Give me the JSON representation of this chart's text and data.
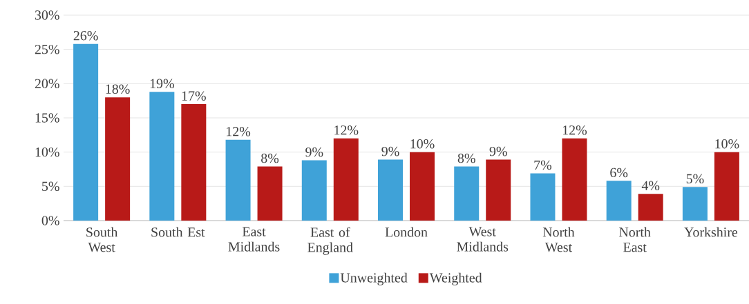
{
  "chart_data": {
    "type": "bar",
    "categories": [
      "South West",
      "South Est",
      "East Midlands",
      "East of England",
      "London",
      "West Midlands",
      "North West",
      "North East",
      "Yorkshire"
    ],
    "series": [
      {
        "name": "Unweighted",
        "color": "#3fa2d8",
        "values": [
          25.8,
          18.8,
          11.8,
          8.8,
          8.9,
          7.9,
          6.9,
          5.8,
          4.9
        ],
        "value_labels": [
          "26%",
          "19%",
          "12%",
          "9%",
          "9%",
          "8%",
          "7%",
          "6%",
          "5%"
        ]
      },
      {
        "name": "Weighted",
        "color": "#b81a18",
        "values": [
          18.0,
          17.0,
          7.9,
          12.0,
          10.0,
          8.9,
          12.0,
          3.9,
          10.0
        ],
        "value_labels": [
          "18%",
          "17%",
          "8%",
          "12%",
          "10%",
          "9%",
          "12%",
          "4%",
          "10%"
        ]
      }
    ],
    "ylim": [
      0,
      30
    ],
    "yticks": [
      {
        "value": 0,
        "label": "0%"
      },
      {
        "value": 5,
        "label": "5%"
      },
      {
        "value": 10,
        "label": "10%"
      },
      {
        "value": 15,
        "label": "15%"
      },
      {
        "value": 20,
        "label": "20%"
      },
      {
        "value": 25,
        "label": "25%"
      },
      {
        "value": 30,
        "label": "30%"
      }
    ],
    "grid": "y",
    "legend": "bottom"
  }
}
